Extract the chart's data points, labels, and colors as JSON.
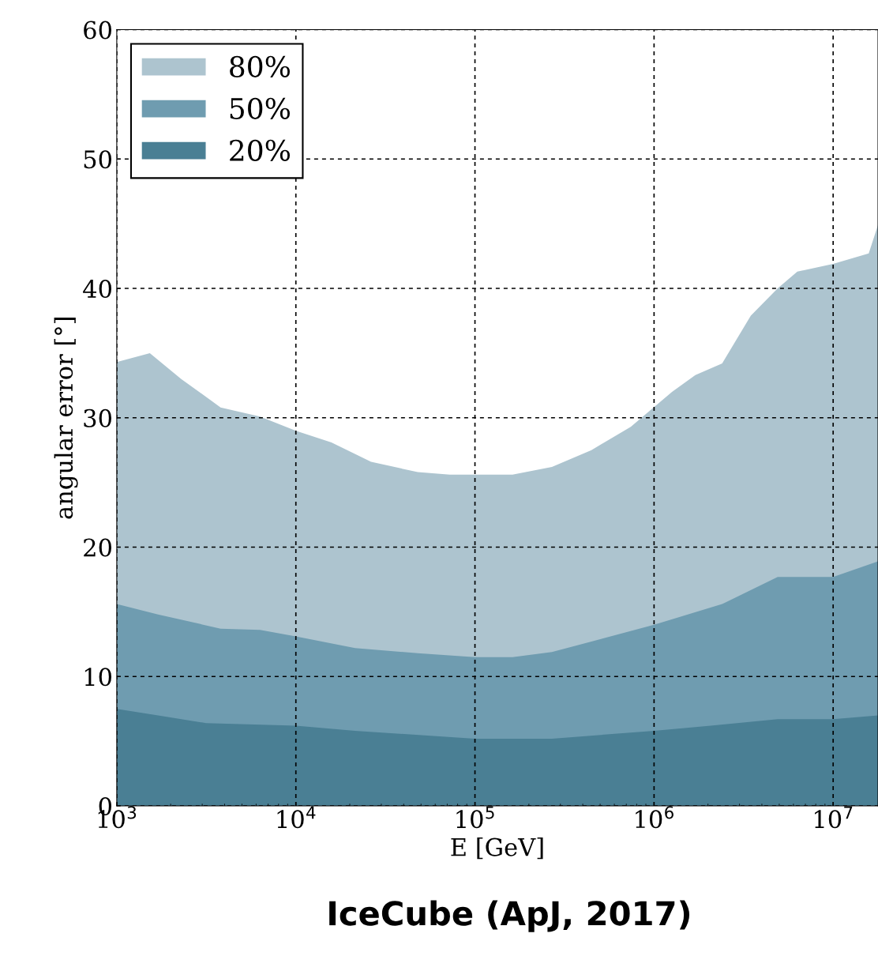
{
  "chart_data": {
    "type": "area",
    "xlabel": "E [GeV]",
    "ylabel": "angular error [°]",
    "log": "x",
    "xlim": [
      1000,
      17800000
    ],
    "ylim": [
      0,
      60
    ],
    "xticks": [
      {
        "value": 1000,
        "label": "10$^{3}$"
      },
      {
        "value": 10000,
        "label": "10$^{4}$"
      },
      {
        "value": 100000,
        "label": "10$^{5}$"
      },
      {
        "value": 1000000,
        "label": "10$^{6}$"
      },
      {
        "value": 10000000,
        "label": "10$^{7}$"
      }
    ],
    "yticks": [
      0,
      10,
      20,
      30,
      40,
      50,
      60
    ],
    "grid": true,
    "legend": "top left",
    "series": [
      {
        "name": "80%",
        "color": "#adc4cf",
        "x": [
          1000,
          1530,
          2290,
          3800,
          6310,
          10000,
          15800,
          26300,
          47900,
          72400,
          162000,
          269000,
          447000,
          741000,
          1260000,
          1700000,
          2400000,
          3470000,
          4900000,
          6310000,
          10000000,
          15800000,
          17800000
        ],
        "values": [
          34.3,
          35.0,
          33.0,
          30.8,
          30.1,
          29.0,
          28.1,
          26.6,
          25.8,
          25.6,
          25.6,
          26.2,
          27.5,
          29.3,
          32.0,
          33.3,
          34.2,
          37.9,
          40.0,
          41.3,
          41.9,
          42.7,
          44.9
        ]
      },
      {
        "name": "50%",
        "color": "#6f9cb0",
        "x": [
          1000,
          1700,
          3800,
          6310,
          10000,
          21400,
          47900,
          100000,
          162000,
          269000,
          447000,
          1000000,
          2400000,
          4900000,
          10000000,
          17800000
        ],
        "values": [
          15.6,
          14.8,
          13.7,
          13.6,
          13.1,
          12.2,
          11.8,
          11.5,
          11.5,
          11.9,
          12.7,
          14.0,
          15.6,
          17.7,
          17.7,
          18.9
        ]
      },
      {
        "name": "20%",
        "color": "#4a7f94",
        "x": [
          1000,
          1700,
          3150,
          10000,
          21400,
          100000,
          269000,
          1000000,
          2070000,
          4900000,
          10000000,
          17800000
        ],
        "values": [
          7.5,
          7.0,
          6.4,
          6.2,
          5.8,
          5.2,
          5.2,
          5.8,
          6.2,
          6.7,
          6.7,
          7.0
        ]
      }
    ],
    "annotations": [
      "IceCube (ApJ, 2017)"
    ]
  }
}
